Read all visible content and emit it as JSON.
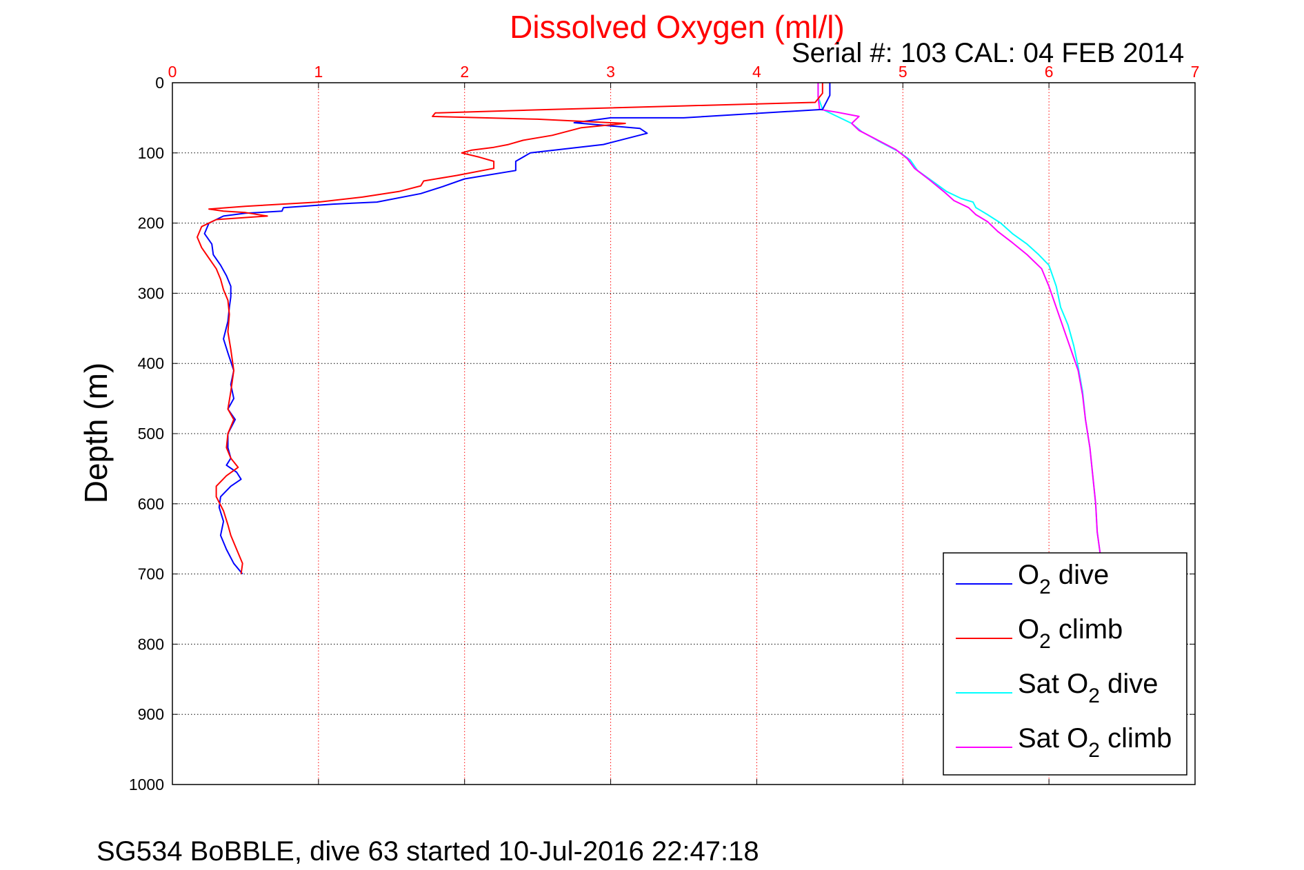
{
  "chart_data": {
    "type": "line",
    "title": "Dissolved Oxygen (ml/l)",
    "subtitle": "Serial #: 103  CAL: 04 FEB 2014",
    "ylabel": "Depth (m)",
    "xlabel": "",
    "caption": "SG534 BoBBLE, dive 63 started 10-Jul-2016 22:47:18",
    "xlim": [
      0,
      7
    ],
    "ylim": [
      0,
      1000
    ],
    "y_reversed": true,
    "x_axis_position": "top",
    "x_ticks": [
      "0",
      "1",
      "2",
      "3",
      "4",
      "5",
      "6",
      "7"
    ],
    "y_ticks": [
      "0",
      "100",
      "200",
      "300",
      "400",
      "500",
      "600",
      "700",
      "800",
      "900",
      "1000"
    ],
    "grid": true,
    "legend_position": "bottom-right",
    "colors": {
      "title": "#ff0000",
      "x_ticks": "#ff0000",
      "y_ticks": "#000000",
      "x_grid": "#ff0000",
      "y_grid": "#000000"
    },
    "series": [
      {
        "name": "O2 dive",
        "legend_main": "O",
        "legend_sub": "2",
        "legend_rest": " dive",
        "color": "#0000ff",
        "points": [
          [
            4.5,
            0
          ],
          [
            4.5,
            18
          ],
          [
            4.45,
            38
          ],
          [
            3.5,
            50
          ],
          [
            3.0,
            50
          ],
          [
            2.75,
            57
          ],
          [
            3.2,
            65
          ],
          [
            3.25,
            72
          ],
          [
            2.95,
            88
          ],
          [
            2.45,
            100
          ],
          [
            2.35,
            112
          ],
          [
            2.35,
            125
          ],
          [
            2.0,
            137
          ],
          [
            1.85,
            148
          ],
          [
            1.7,
            158
          ],
          [
            1.4,
            170
          ],
          [
            1.1,
            173
          ],
          [
            0.76,
            178
          ],
          [
            0.75,
            183
          ],
          [
            0.5,
            186
          ],
          [
            0.35,
            190
          ],
          [
            0.25,
            200
          ],
          [
            0.22,
            215
          ],
          [
            0.27,
            230
          ],
          [
            0.28,
            245
          ],
          [
            0.33,
            260
          ],
          [
            0.37,
            275
          ],
          [
            0.4,
            290
          ],
          [
            0.4,
            305
          ],
          [
            0.39,
            320
          ],
          [
            0.38,
            340
          ],
          [
            0.35,
            365
          ],
          [
            0.38,
            385
          ],
          [
            0.42,
            410
          ],
          [
            0.4,
            430
          ],
          [
            0.42,
            450
          ],
          [
            0.38,
            465
          ],
          [
            0.43,
            480
          ],
          [
            0.38,
            500
          ],
          [
            0.38,
            520
          ],
          [
            0.4,
            535
          ],
          [
            0.37,
            545
          ],
          [
            0.44,
            555
          ],
          [
            0.47,
            565
          ],
          [
            0.4,
            575
          ],
          [
            0.33,
            590
          ],
          [
            0.32,
            605
          ],
          [
            0.35,
            625
          ],
          [
            0.33,
            645
          ],
          [
            0.37,
            665
          ],
          [
            0.42,
            685
          ],
          [
            0.48,
            700
          ]
        ]
      },
      {
        "name": "O2 climb",
        "legend_main": "O",
        "legend_sub": "2",
        "legend_rest": " climb",
        "color": "#ff0000",
        "points": [
          [
            4.45,
            0
          ],
          [
            4.45,
            15
          ],
          [
            4.4,
            28
          ],
          [
            3.5,
            33
          ],
          [
            2.6,
            38
          ],
          [
            1.8,
            43
          ],
          [
            1.78,
            48
          ],
          [
            2.5,
            52
          ],
          [
            3.1,
            58
          ],
          [
            2.8,
            64
          ],
          [
            2.6,
            75
          ],
          [
            2.4,
            82
          ],
          [
            2.3,
            88
          ],
          [
            2.2,
            92
          ],
          [
            2.05,
            96
          ],
          [
            1.98,
            100
          ],
          [
            2.1,
            106
          ],
          [
            2.2,
            112
          ],
          [
            2.2,
            122
          ],
          [
            1.95,
            132
          ],
          [
            1.72,
            140
          ],
          [
            1.7,
            147
          ],
          [
            1.55,
            155
          ],
          [
            1.3,
            163
          ],
          [
            1.0,
            170
          ],
          [
            0.5,
            176
          ],
          [
            0.25,
            180
          ],
          [
            0.35,
            183
          ],
          [
            0.5,
            185
          ],
          [
            0.65,
            190
          ],
          [
            0.3,
            195
          ],
          [
            0.2,
            205
          ],
          [
            0.17,
            220
          ],
          [
            0.2,
            235
          ],
          [
            0.25,
            250
          ],
          [
            0.3,
            265
          ],
          [
            0.33,
            280
          ],
          [
            0.35,
            295
          ],
          [
            0.38,
            310
          ],
          [
            0.39,
            330
          ],
          [
            0.38,
            355
          ],
          [
            0.4,
            380
          ],
          [
            0.42,
            410
          ],
          [
            0.4,
            440
          ],
          [
            0.38,
            465
          ],
          [
            0.42,
            480
          ],
          [
            0.38,
            500
          ],
          [
            0.37,
            520
          ],
          [
            0.4,
            535
          ],
          [
            0.45,
            548
          ],
          [
            0.37,
            560
          ],
          [
            0.3,
            575
          ],
          [
            0.3,
            590
          ],
          [
            0.35,
            610
          ],
          [
            0.38,
            630
          ],
          [
            0.4,
            645
          ],
          [
            0.44,
            665
          ],
          [
            0.48,
            685
          ],
          [
            0.47,
            700
          ]
        ]
      },
      {
        "name": "Sat O2 dive",
        "legend_main": "Sat O",
        "legend_sub": "2",
        "legend_rest": " dive",
        "color": "#00ffff",
        "points": [
          [
            4.42,
            0
          ],
          [
            4.42,
            20
          ],
          [
            4.45,
            38
          ],
          [
            4.55,
            48
          ],
          [
            4.65,
            58
          ],
          [
            4.72,
            70
          ],
          [
            4.85,
            85
          ],
          [
            4.97,
            98
          ],
          [
            5.05,
            110
          ],
          [
            5.1,
            125
          ],
          [
            5.2,
            140
          ],
          [
            5.3,
            155
          ],
          [
            5.4,
            165
          ],
          [
            5.48,
            170
          ],
          [
            5.5,
            178
          ],
          [
            5.58,
            188
          ],
          [
            5.67,
            200
          ],
          [
            5.75,
            215
          ],
          [
            5.85,
            230
          ],
          [
            5.93,
            245
          ],
          [
            6.0,
            260
          ],
          [
            6.05,
            290
          ],
          [
            6.08,
            320
          ],
          [
            6.13,
            345
          ],
          [
            6.17,
            375
          ],
          [
            6.2,
            405
          ],
          [
            6.23,
            440
          ],
          [
            6.25,
            480
          ],
          [
            6.28,
            520
          ],
          [
            6.3,
            560
          ],
          [
            6.32,
            600
          ],
          [
            6.33,
            640
          ],
          [
            6.35,
            670
          ]
        ]
      },
      {
        "name": "Sat O2 climb",
        "legend_main": "Sat O",
        "legend_sub": "2",
        "legend_rest": " climb",
        "color": "#ff00ff",
        "points": [
          [
            4.42,
            0
          ],
          [
            4.42,
            20
          ],
          [
            4.43,
            38
          ],
          [
            4.55,
            42
          ],
          [
            4.7,
            48
          ],
          [
            4.65,
            58
          ],
          [
            4.7,
            68
          ],
          [
            4.83,
            82
          ],
          [
            4.95,
            95
          ],
          [
            5.03,
            108
          ],
          [
            5.08,
            122
          ],
          [
            5.18,
            138
          ],
          [
            5.28,
            155
          ],
          [
            5.35,
            168
          ],
          [
            5.45,
            178
          ],
          [
            5.5,
            188
          ],
          [
            5.58,
            198
          ],
          [
            5.65,
            212
          ],
          [
            5.75,
            228
          ],
          [
            5.85,
            245
          ],
          [
            5.95,
            265
          ],
          [
            6.0,
            290
          ],
          [
            6.05,
            320
          ],
          [
            6.1,
            350
          ],
          [
            6.15,
            380
          ],
          [
            6.2,
            410
          ],
          [
            6.23,
            445
          ],
          [
            6.25,
            480
          ],
          [
            6.28,
            520
          ],
          [
            6.3,
            560
          ],
          [
            6.32,
            600
          ],
          [
            6.33,
            640
          ],
          [
            6.35,
            670
          ]
        ]
      }
    ]
  }
}
